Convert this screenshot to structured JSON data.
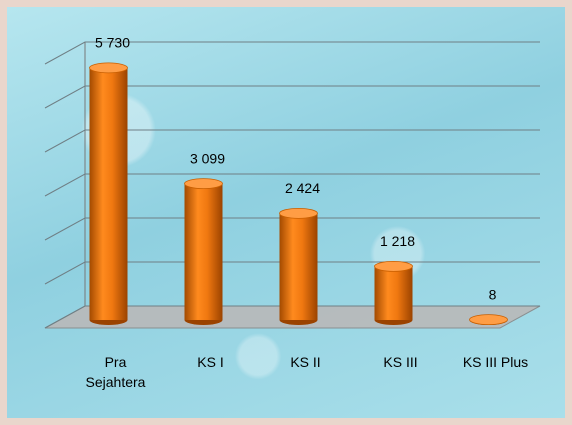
{
  "chart_data": {
    "type": "bar",
    "categories": [
      "Pra Sejahtera",
      "KS I",
      "KS II",
      "KS III",
      "KS III Plus"
    ],
    "values": [
      5730,
      3099,
      2424,
      1218,
      8
    ],
    "value_labels": [
      "5 730",
      "3 099",
      "2 424",
      "1 218",
      "8"
    ],
    "color": "#e8730c",
    "ylim": [
      0,
      6000
    ],
    "yticks": [
      0,
      1000,
      2000,
      3000,
      4000,
      5000,
      6000
    ],
    "grid": true
  }
}
